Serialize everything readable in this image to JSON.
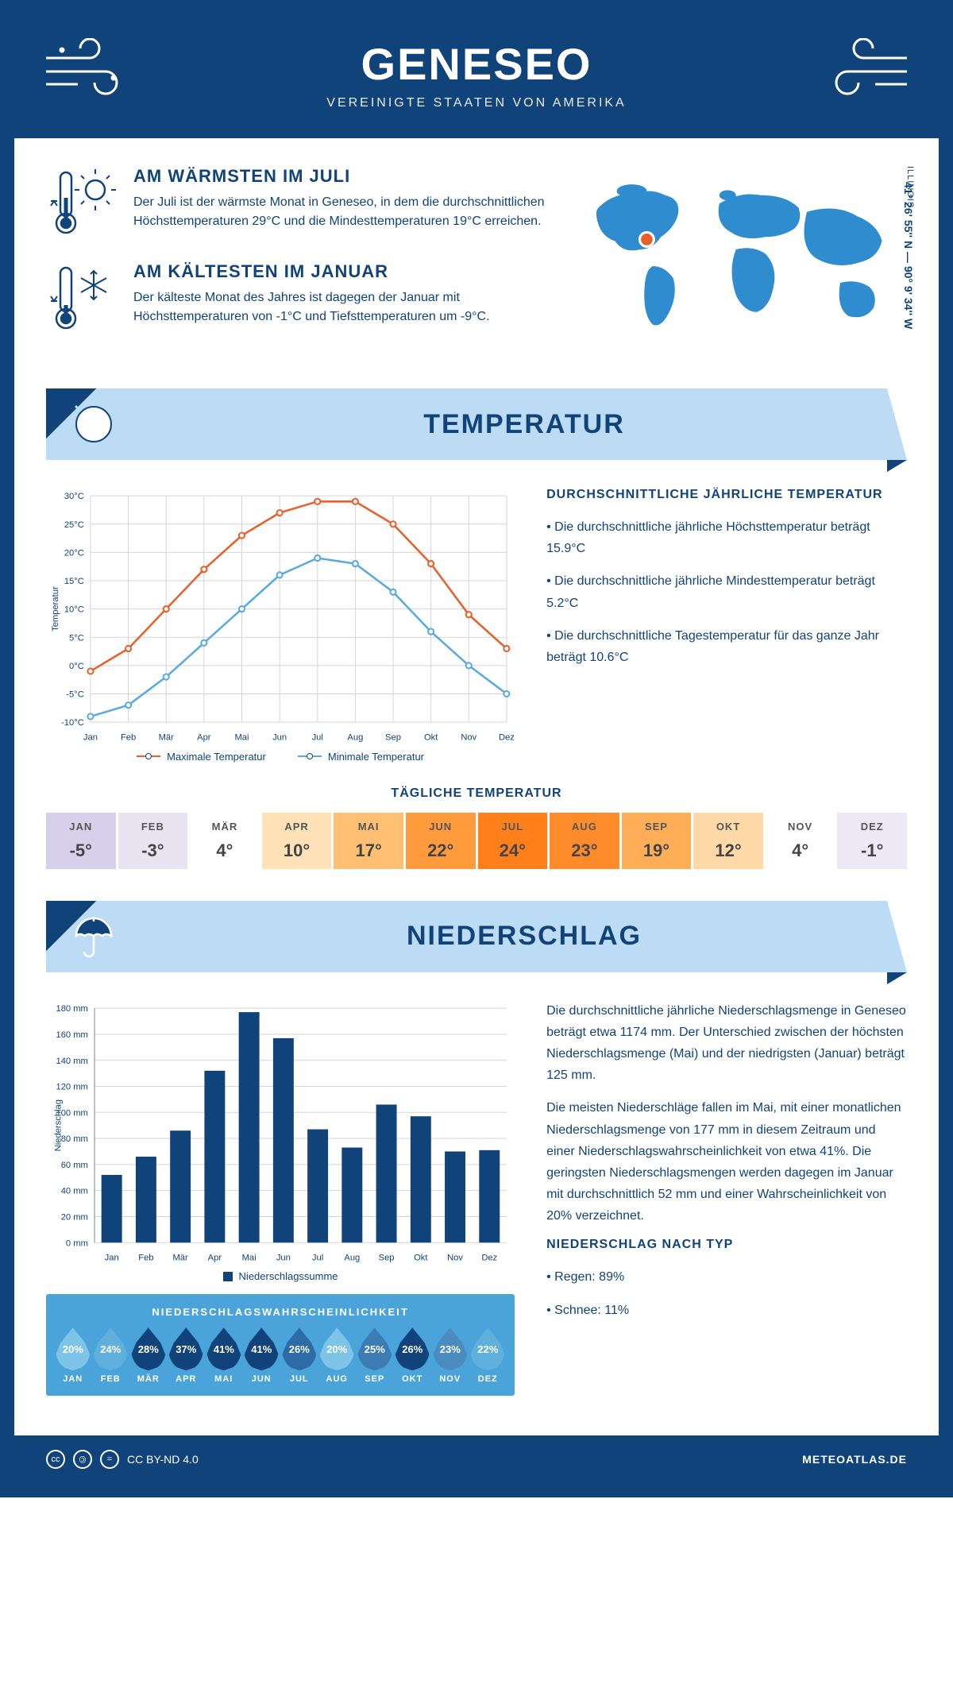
{
  "header": {
    "title": "GENESEO",
    "subtitle": "VEREINIGTE STAATEN VON AMERIKA"
  },
  "coords": "41° 26' 55'' N — 90° 9' 34'' W",
  "region": "ILLINOIS",
  "warmest": {
    "title": "AM WÄRMSTEN IM JULI",
    "text": "Der Juli ist der wärmste Monat in Geneseo, in dem die durchschnittlichen Höchsttemperaturen 29°C und die Mindesttemperaturen 19°C erreichen."
  },
  "coldest": {
    "title": "AM KÄLTESTEN IM JANUAR",
    "text": "Der kälteste Monat des Jahres ist dagegen der Januar mit Höchsttemperaturen von -1°C und Tiefsttemperaturen um -9°C."
  },
  "sections": {
    "temp": "TEMPERATUR",
    "precip": "NIEDERSCHLAG"
  },
  "tempChart": {
    "months": [
      "Jan",
      "Feb",
      "Mär",
      "Apr",
      "Mai",
      "Jun",
      "Jul",
      "Aug",
      "Sep",
      "Okt",
      "Nov",
      "Dez"
    ],
    "max": [
      -1,
      3,
      10,
      17,
      23,
      27,
      29,
      29,
      25,
      18,
      9,
      3
    ],
    "min": [
      -9,
      -7,
      -2,
      4,
      10,
      16,
      19,
      18,
      13,
      6,
      0,
      -5
    ],
    "ylabel": "Temperatur",
    "ylim": [
      -10,
      30
    ],
    "ystep": 5,
    "colors": {
      "max": "#e8602c",
      "min": "#5aa9e0",
      "grid": "#d5d5d5"
    },
    "legend": {
      "max": "Maximale Temperatur",
      "min": "Minimale Temperatur"
    }
  },
  "tempInfo": {
    "title": "DURCHSCHNITTLICHE JÄHRLICHE TEMPERATUR",
    "b1": "• Die durchschnittliche jährliche Höchsttemperatur beträgt 15.9°C",
    "b2": "• Die durchschnittliche jährliche Mindesttemperatur beträgt 5.2°C",
    "b3": "• Die durchschnittliche Tagestemperatur für das ganze Jahr beträgt 10.6°C"
  },
  "dailyTitle": "TÄGLICHE TEMPERATUR",
  "daily": [
    {
      "m": "JAN",
      "v": "-5°",
      "bg": "#d6d0ea"
    },
    {
      "m": "FEB",
      "v": "-3°",
      "bg": "#e8e4f2"
    },
    {
      "m": "MÄR",
      "v": "4°",
      "bg": "#ffffff"
    },
    {
      "m": "APR",
      "v": "10°",
      "bg": "#ffe1b8"
    },
    {
      "m": "MAI",
      "v": "17°",
      "bg": "#ffc074"
    },
    {
      "m": "JUN",
      "v": "22°",
      "bg": "#ff9a3d"
    },
    {
      "m": "JUL",
      "v": "24°",
      "bg": "#ff7f1a"
    },
    {
      "m": "AUG",
      "v": "23°",
      "bg": "#ff8b2b"
    },
    {
      "m": "SEP",
      "v": "19°",
      "bg": "#ffad56"
    },
    {
      "m": "OKT",
      "v": "12°",
      "bg": "#ffd9a8"
    },
    {
      "m": "NOV",
      "v": "4°",
      "bg": "#ffffff"
    },
    {
      "m": "DEZ",
      "v": "-1°",
      "bg": "#ece8f5"
    }
  ],
  "precipChart": {
    "months": [
      "Jan",
      "Feb",
      "Mär",
      "Apr",
      "Mai",
      "Jun",
      "Jul",
      "Aug",
      "Sep",
      "Okt",
      "Nov",
      "Dez"
    ],
    "values": [
      52,
      66,
      86,
      132,
      177,
      157,
      87,
      73,
      106,
      97,
      70,
      71
    ],
    "ylabel": "Niederschlag",
    "ylim": [
      0,
      180
    ],
    "ystep": 20,
    "color": "#11437b",
    "grid": "#d5d5d5",
    "legend": "Niederschlagssumme"
  },
  "precipText": {
    "p1": "Die durchschnittliche jährliche Niederschlagsmenge in Geneseo beträgt etwa 1174 mm. Der Unterschied zwischen der höchsten Niederschlagsmenge (Mai) und der niedrigsten (Januar) beträgt 125 mm.",
    "p2": "Die meisten Niederschläge fallen im Mai, mit einer monatlichen Niederschlagsmenge von 177 mm in diesem Zeitraum und einer Niederschlagswahrscheinlichkeit von etwa 41%. Die geringsten Niederschlagsmengen werden dagegen im Januar mit durchschnittlich 52 mm und einer Wahrscheinlichkeit von 20% verzeichnet.",
    "typeTitle": "NIEDERSCHLAG NACH TYP",
    "t1": "• Regen: 89%",
    "t2": "• Schnee: 11%"
  },
  "probTitle": "NIEDERSCHLAGSWAHRSCHEINLICHKEIT",
  "prob": [
    {
      "m": "JAN",
      "v": "20%",
      "c": "#7ec4e8"
    },
    {
      "m": "FEB",
      "v": "24%",
      "c": "#5fb0dd"
    },
    {
      "m": "MÄR",
      "v": "28%",
      "c": "#11437b"
    },
    {
      "m": "APR",
      "v": "37%",
      "c": "#11437b"
    },
    {
      "m": "MAI",
      "v": "41%",
      "c": "#11437b"
    },
    {
      "m": "JUN",
      "v": "41%",
      "c": "#11437b"
    },
    {
      "m": "JUL",
      "v": "26%",
      "c": "#2d6ba8"
    },
    {
      "m": "AUG",
      "v": "20%",
      "c": "#7ec4e8"
    },
    {
      "m": "SEP",
      "v": "25%",
      "c": "#3d7bb5"
    },
    {
      "m": "OKT",
      "v": "26%",
      "c": "#11437b"
    },
    {
      "m": "NOV",
      "v": "23%",
      "c": "#4a8bc0"
    },
    {
      "m": "DEZ",
      "v": "22%",
      "c": "#5fb0dd"
    }
  ],
  "footer": {
    "license": "CC BY-ND 4.0",
    "site": "METEOATLAS.DE"
  }
}
